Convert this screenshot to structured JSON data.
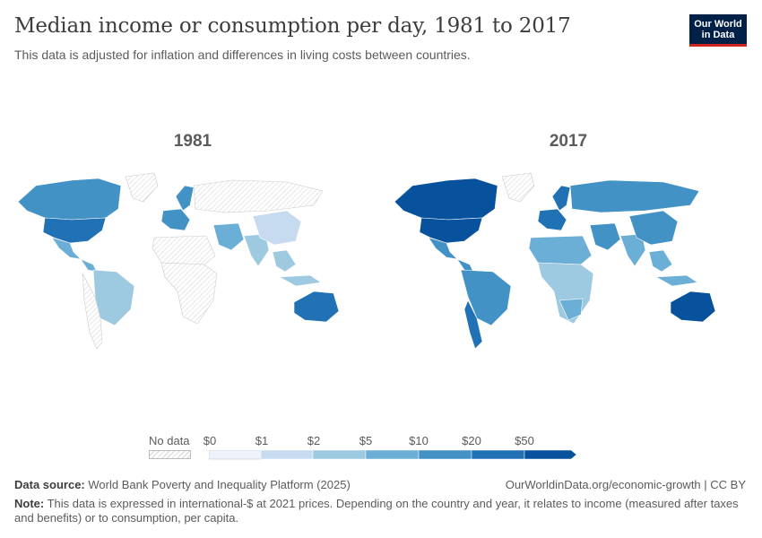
{
  "header": {
    "title": "Median income or consumption per day, 1981 to 2017",
    "subtitle": "This data is adjusted for inflation and differences in living costs between countries.",
    "logo_line1": "Our World",
    "logo_line2": "in Data"
  },
  "maps": [
    {
      "year": "1981"
    },
    {
      "year": "2017"
    }
  ],
  "legend": {
    "no_data_label": "No data",
    "ticks": [
      "$0",
      "$1",
      "$2",
      "$5",
      "$10",
      "$20",
      "$50"
    ],
    "colors": [
      "#eef3fb",
      "#c6dbef",
      "#9ecae1",
      "#6baed6",
      "#4292c6",
      "#2171b5",
      "#08519c"
    ]
  },
  "footer": {
    "source_label": "Data source:",
    "source_text": "World Bank Poverty and Inequality Platform (2025)",
    "url": "OurWorldinData.org/economic-growth | CC BY",
    "note_label": "Note:",
    "note_line1": "This data is expressed in international-$ at 2021 prices. Depending on the country and year, it relates to income (measured after taxes",
    "note_line2": "and benefits) or to consumption, per capita."
  }
}
